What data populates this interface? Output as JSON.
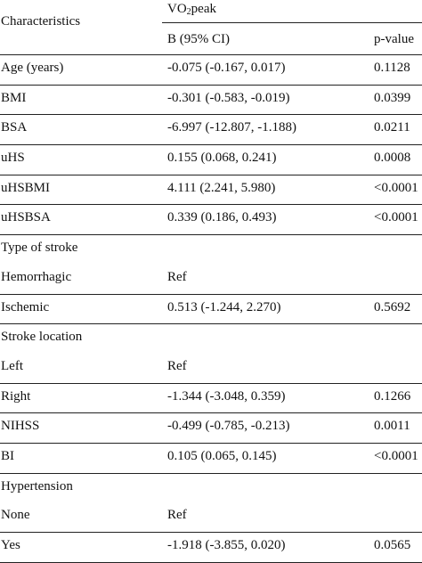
{
  "header": {
    "characteristics": "Characteristics",
    "group_prefix": "VO",
    "group_sub": "2",
    "group_suffix": "peak",
    "b_col": "B (95% CI)",
    "p_col": "p-value"
  },
  "rows": [
    {
      "label": "Age (years)",
      "b": "-0.075 (-0.167, 0.017)",
      "p": "0.1128"
    },
    {
      "label": "BMI",
      "b": "-0.301 (-0.583, -0.019)",
      "p": "0.0399"
    },
    {
      "label": "BSA",
      "b": "-6.997 (-12.807, -1.188)",
      "p": "0.0211"
    },
    {
      "label": "uHS",
      "b": "0.155 (0.068, 0.241)",
      "p": "0.0008"
    },
    {
      "label": "uHSBMI",
      "b": "4.111 (2.241, 5.980)",
      "p": "<0.0001"
    },
    {
      "label": "uHSBSA",
      "b": "0.339 (0.186, 0.493)",
      "p": "<0.0001"
    },
    {
      "label": "Type of stroke",
      "b": "",
      "p": ""
    },
    {
      "label": "Hemorrhagic",
      "b": "Ref",
      "p": ""
    },
    {
      "label": "Ischemic",
      "b": "0.513 (-1.244, 2.270)",
      "p": "0.5692"
    },
    {
      "label": "Stroke location",
      "b": "",
      "p": ""
    },
    {
      "label": "Left",
      "b": "Ref",
      "p": ""
    },
    {
      "label": "Right",
      "b": "-1.344 (-3.048, 0.359)",
      "p": "0.1266"
    },
    {
      "label": "NIHSS",
      "b": "-0.499 (-0.785, -0.213)",
      "p": "0.0011"
    },
    {
      "label": "BI",
      "b": "0.105 (0.065, 0.145)",
      "p": "<0.0001"
    },
    {
      "label": "Hypertension",
      "b": "",
      "p": ""
    },
    {
      "label": "None",
      "b": "Ref",
      "p": ""
    },
    {
      "label": "Yes",
      "b": "-1.918 (-3.855, 0.020)",
      "p": "0.0565"
    }
  ]
}
